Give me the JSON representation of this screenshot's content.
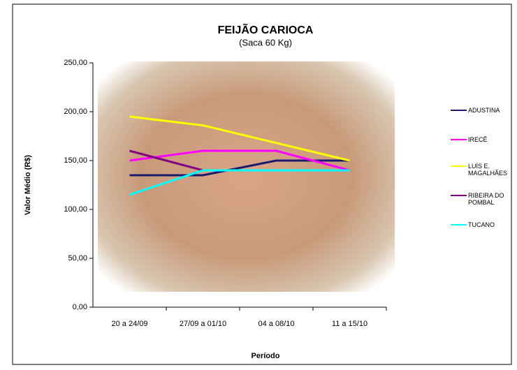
{
  "chart_data": {
    "type": "line",
    "title": "FEIJÃO CARIOCA",
    "subtitle": "(Saca 60 Kg)",
    "x_label": "Período",
    "y_label": "Valor Médio (R$)",
    "categories": [
      "20 a 24/09",
      "27/09 a 01/10",
      "04 a 08/10",
      "11 a 15/10"
    ],
    "series": [
      {
        "name": "ADUSTINA",
        "color": "#1a1a6e",
        "values": [
          135,
          135,
          150,
          150
        ]
      },
      {
        "name": "IRECÊ",
        "color": "#ff00ff",
        "values": [
          150,
          160,
          160,
          140
        ]
      },
      {
        "name": "LUÍS E. MAGALHÃES",
        "color": "#ffff00",
        "values": [
          195,
          186,
          168,
          150
        ]
      },
      {
        "name": "RIBEIRA DO POMBAL",
        "color": "#800080",
        "values": [
          160,
          140,
          140,
          140
        ]
      },
      {
        "name": "TUCANO",
        "color": "#00ffff",
        "values": [
          115,
          140,
          140,
          140
        ]
      }
    ],
    "ylim": [
      0,
      250
    ],
    "yticks": [
      {
        "value": 0,
        "label": "0,00"
      },
      {
        "value": 50,
        "label": "50,00"
      },
      {
        "value": 100,
        "label": "100,00"
      },
      {
        "value": 150,
        "label": "150,00"
      },
      {
        "value": 200,
        "label": "200,00"
      },
      {
        "value": 250,
        "label": "250,00"
      }
    ],
    "grid": false,
    "legend": "right"
  }
}
